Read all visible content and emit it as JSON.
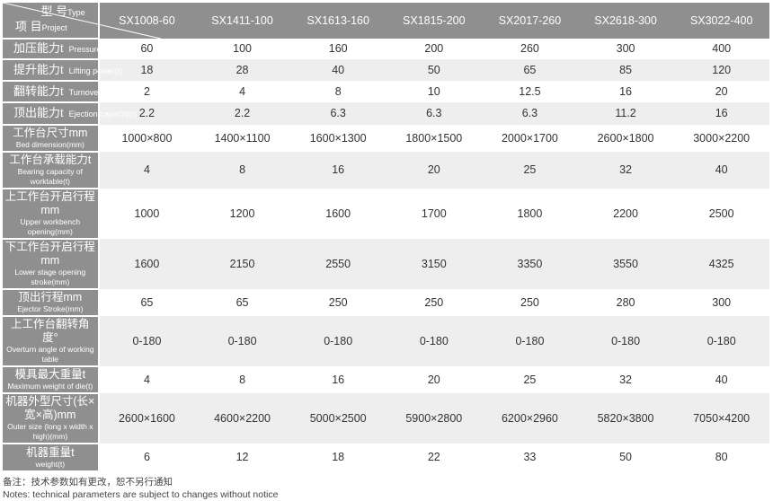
{
  "header": {
    "project_zh": "项 目",
    "project_en": "Project",
    "type_zh": "型 号",
    "type_en": "Type",
    "models": [
      "SX1008-60",
      "SX1411-100",
      "SX1613-160",
      "SX1815-200",
      "SX2017-260",
      "SX2618-300",
      "SX3022-400"
    ]
  },
  "rows": [
    {
      "zh": "加压能力t",
      "en": "Pressure capacity(t)",
      "inline": true,
      "values": [
        "60",
        "100",
        "160",
        "200",
        "260",
        "300",
        "400"
      ]
    },
    {
      "zh": "提升能力t",
      "en": "Lifting power(t)",
      "inline": true,
      "values": [
        "18",
        "28",
        "40",
        "50",
        "65",
        "85",
        "120"
      ]
    },
    {
      "zh": "翻转能力t",
      "en": "Turnover ability(t)",
      "inline": true,
      "values": [
        "2",
        "4",
        "8",
        "10",
        "12.5",
        "16",
        "20"
      ]
    },
    {
      "zh": "顶出能力t",
      "en": "Ejection capacity(t)",
      "inline": true,
      "values": [
        "2.2",
        "2.2",
        "6.3",
        "6.3",
        "6.3",
        "11.2",
        "16"
      ]
    },
    {
      "zh": "工作台尺寸mm",
      "en": "Bed dimension(mm)",
      "values": [
        "1000×800",
        "1400×1100",
        "1600×1300",
        "1800×1500",
        "2000×1700",
        "2600×1800",
        "3000×2200"
      ]
    },
    {
      "zh": "工作台承载能力t",
      "en": "Bearing capacity of worktable(t)",
      "values": [
        "4",
        "8",
        "16",
        "20",
        "25",
        "32",
        "40"
      ]
    },
    {
      "zh": "上工作台开启行程mm",
      "en": "Upper workbench opening(mm)",
      "values": [
        "1000",
        "1200",
        "1600",
        "1700",
        "1800",
        "2200",
        "2500"
      ]
    },
    {
      "zh": "下工作台开启行程mm",
      "en": "Lower stage opening stroke(mm)",
      "values": [
        "1600",
        "2150",
        "2550",
        "3150",
        "3350",
        "3550",
        "4325"
      ]
    },
    {
      "zh": "顶出行程mm",
      "en": "Ejector Stroke(mm)",
      "values": [
        "65",
        "65",
        "250",
        "250",
        "250",
        "280",
        "300"
      ]
    },
    {
      "zh": "上工作台翻转角度°",
      "en": "Overturn angle of working table",
      "values": [
        "0-180",
        "0-180",
        "0-180",
        "0-180",
        "0-180",
        "0-180",
        "0-180"
      ]
    },
    {
      "zh": "模具最大重量t",
      "en": "Maximum weight of die(t)",
      "values": [
        "4",
        "8",
        "16",
        "20",
        "25",
        "32",
        "40"
      ]
    },
    {
      "zh": "机器外型尺寸(长×宽×高)mm",
      "en": "Outer size (long x width x high)(mm)",
      "values": [
        "2600×1600",
        "4600×2200",
        "5000×2500",
        "5900×2800",
        "6200×2960",
        "5820×3800",
        "7050×4200"
      ]
    },
    {
      "zh": "机器重量t",
      "en": "weight(t)",
      "values": [
        "6",
        "12",
        "18",
        "22",
        "33",
        "50",
        "80"
      ]
    }
  ],
  "notes": {
    "zh": "备注：技术参数如有更改，恕不另行通知",
    "en": "Notes: technical parameters are subject to changes without notice"
  }
}
